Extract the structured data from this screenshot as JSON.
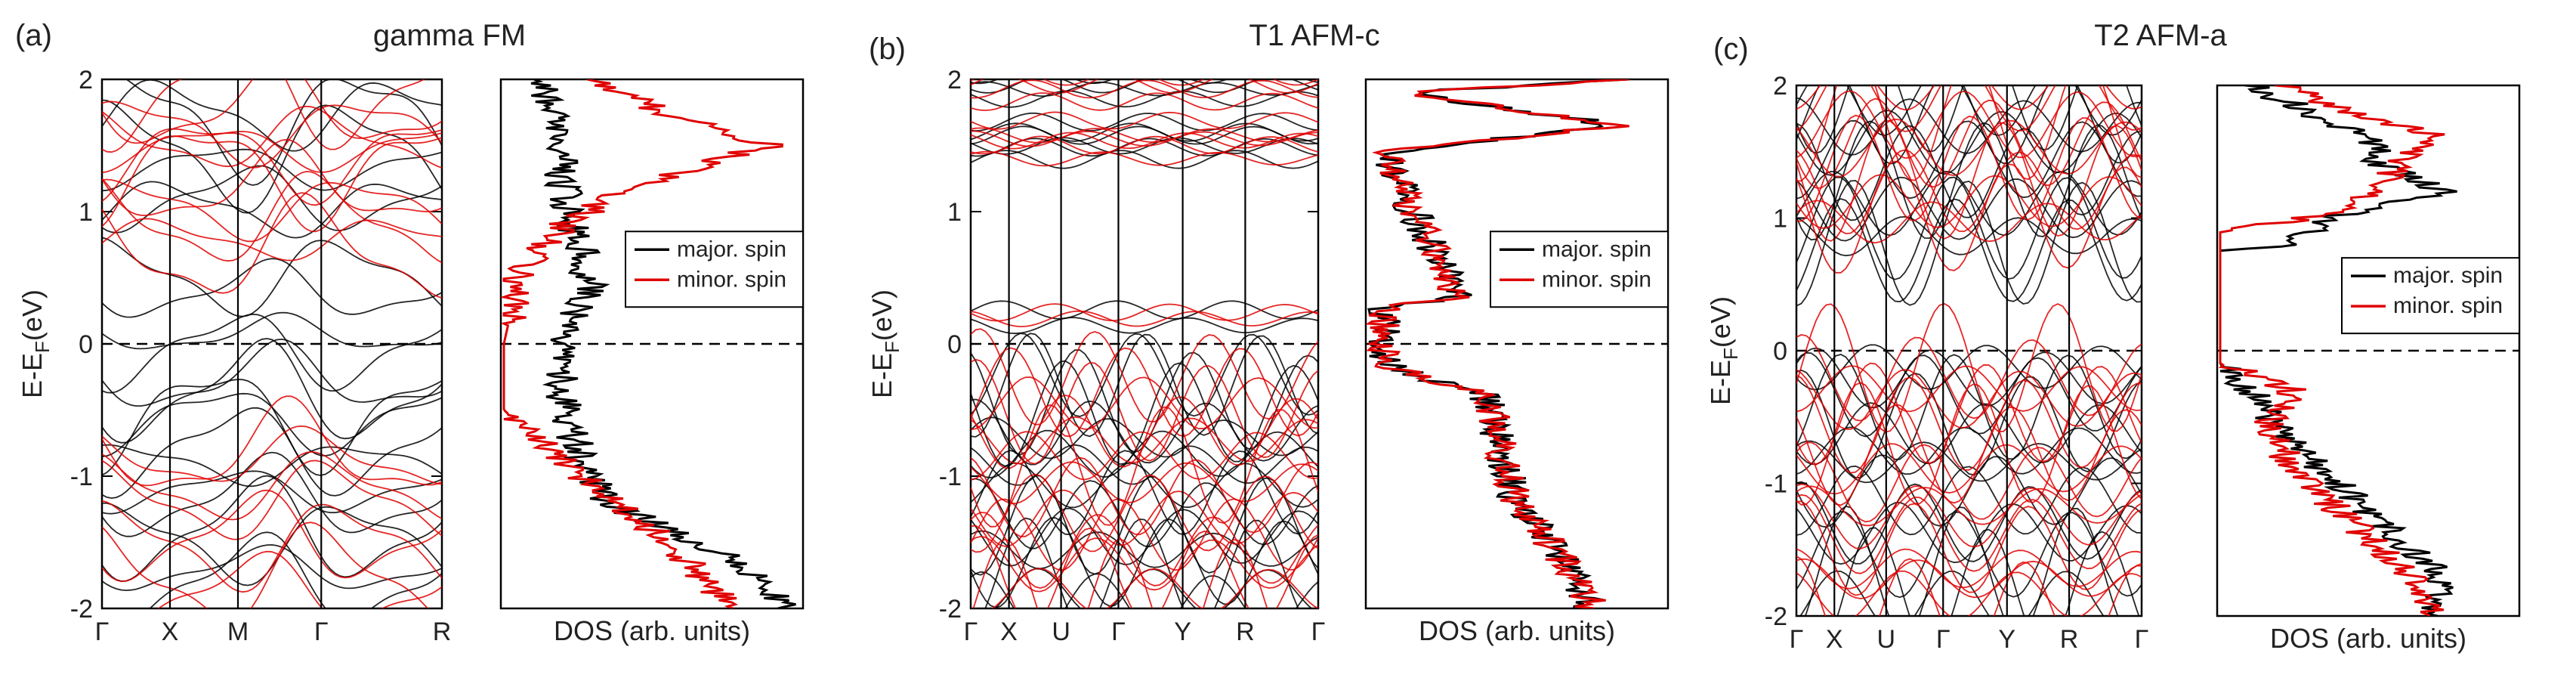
{
  "panels": [
    {
      "label": "(a)",
      "title": "gamma FM",
      "band": {
        "ylabel": "E-E",
        "ylabel_sub": "F",
        "ylabel_tail": "(eV)",
        "yticks": [
          "-2",
          "-1",
          "0",
          "1",
          "2"
        ],
        "kpoints": [
          "Γ",
          "X",
          "M",
          "Γ",
          "R"
        ],
        "kpos": [
          0,
          0.2,
          0.4,
          0.645,
          1.0
        ]
      },
      "dos": {
        "xlabel": "DOS (arb. units)",
        "legend": [
          "major. spin",
          "minor. spin"
        ]
      }
    },
    {
      "label": "(b)",
      "title": "T1 AFM-c",
      "band": {
        "ylabel": "E-E",
        "ylabel_sub": "F",
        "ylabel_tail": "(eV)",
        "yticks": [
          "-2",
          "-1",
          "0",
          "1",
          "2"
        ],
        "kpoints": [
          "Γ",
          "X",
          "U",
          "Γ",
          "Y",
          "R",
          "Γ"
        ],
        "kpos": [
          0,
          0.11,
          0.26,
          0.425,
          0.61,
          0.79,
          1.0
        ]
      },
      "dos": {
        "xlabel": "DOS (arb. units)",
        "legend": [
          "major. spin",
          "minor. spin"
        ]
      }
    },
    {
      "label": "(c)",
      "title": "T2 AFM-a",
      "band": {
        "ylabel": "E-E",
        "ylabel_sub": "F",
        "ylabel_tail": "(eV)",
        "yticks": [
          "-2",
          "-1",
          "0",
          "1",
          "2"
        ],
        "kpoints": [
          "Γ",
          "X",
          "U",
          "Γ",
          "Y",
          "R",
          "Γ"
        ],
        "kpos": [
          0,
          0.11,
          0.26,
          0.425,
          0.61,
          0.79,
          1.0
        ]
      },
      "dos": {
        "xlabel": "DOS (arb. units)",
        "legend": [
          "major. spin",
          "minor. spin"
        ]
      }
    }
  ],
  "chart_data": [
    {
      "type": "line",
      "panel": "(a)",
      "title": "gamma FM",
      "xlabel": "",
      "ylabel": "E-EF(eV)",
      "ylim": [
        -2,
        2
      ],
      "x_ticks": [
        "Γ",
        "X",
        "M",
        "Γ",
        "R"
      ],
      "series": [
        {
          "name": "major. spin",
          "color": "#000000",
          "y_values": [
            0.46,
            0.02,
            -0.3,
            -0.55,
            -0.85,
            -1.15,
            -1.45,
            -1.75,
            1.05,
            1.4,
            1.7
          ]
        },
        {
          "name": "minor. spin",
          "color": "#e00000",
          "y_values": [
            -0.85,
            -1.15,
            -1.5,
            -1.8,
            0.75,
            1.0,
            1.25,
            1.45,
            1.6,
            1.85
          ]
        }
      ]
    },
    {
      "type": "line",
      "panel": "(a)",
      "title": "",
      "xlabel": "DOS (arb. units)",
      "ylabel": "",
      "ylim": [
        -2,
        2
      ],
      "legend": "right-middle",
      "series": [
        {
          "name": "major. spin",
          "color": "#000000",
          "y": [
            2.0,
            1.6,
            1.2,
            0.8,
            0.4,
            0.0,
            -0.4,
            -0.8,
            -1.2,
            -1.6,
            -1.95
          ],
          "x": [
            0.12,
            0.18,
            0.2,
            0.25,
            0.3,
            0.18,
            0.2,
            0.25,
            0.35,
            0.75,
            0.95
          ]
        },
        {
          "name": "minor. spin",
          "color": "#e00000",
          "y": [
            2.0,
            1.75,
            1.5,
            1.2,
            0.9,
            0.5,
            0.0,
            -0.5,
            -0.9,
            -1.3,
            -1.6,
            -1.95
          ],
          "x": [
            0.3,
            0.55,
            0.9,
            0.45,
            0.2,
            0.05,
            0.0,
            0.0,
            0.2,
            0.45,
            0.6,
            0.75
          ]
        }
      ]
    },
    {
      "type": "line",
      "panel": "(b)",
      "title": "T1 AFM-c",
      "xlabel": "",
      "ylabel": "E-EF(eV)",
      "ylim": [
        -2,
        2
      ],
      "x_ticks": [
        "Γ",
        "X",
        "U",
        "Γ",
        "Y",
        "R",
        "Γ"
      ],
      "series": [
        {
          "name": "major. spin",
          "color": "#000000",
          "y_values": [
            1.98,
            1.9,
            1.62,
            1.55,
            1.45,
            0.2,
            -0.3,
            -0.5,
            -0.7,
            -0.9,
            -1.1,
            -1.3,
            -1.5,
            -1.7,
            -1.9
          ]
        },
        {
          "name": "minor. spin",
          "color": "#e00000",
          "y_values": [
            1.98,
            1.9,
            1.62,
            1.55,
            1.45,
            0.2,
            -0.3,
            -0.5,
            -0.7,
            -0.9,
            -1.1,
            -1.3,
            -1.5,
            -1.7,
            -1.9
          ]
        }
      ]
    },
    {
      "type": "line",
      "panel": "(b)",
      "title": "",
      "xlabel": "DOS (arb. units)",
      "ylabel": "",
      "ylim": [
        -2,
        2
      ],
      "legend": "right-middle",
      "series": [
        {
          "name": "major. spin",
          "color": "#000000",
          "y": [
            2.0,
            1.9,
            1.65,
            1.45,
            0.35,
            0.28,
            -0.15,
            -0.4,
            -0.8,
            -1.2,
            -1.6,
            -1.95
          ],
          "x": [
            0.9,
            0.1,
            0.85,
            0.05,
            0.3,
            0.05,
            0.05,
            0.4,
            0.45,
            0.5,
            0.65,
            0.75
          ]
        },
        {
          "name": "minor. spin",
          "color": "#e00000",
          "y": [
            2.0,
            1.9,
            1.65,
            1.45,
            0.35,
            0.28,
            -0.15,
            -0.4,
            -0.8,
            -1.2,
            -1.6,
            -1.95
          ],
          "x": [
            0.9,
            0.1,
            0.85,
            0.05,
            0.3,
            0.05,
            0.05,
            0.4,
            0.45,
            0.5,
            0.65,
            0.75
          ]
        }
      ]
    },
    {
      "type": "line",
      "panel": "(c)",
      "title": "T2 AFM-a",
      "xlabel": "",
      "ylabel": "E-EF(eV)",
      "ylim": [
        -2,
        2
      ],
      "x_ticks": [
        "Γ",
        "X",
        "U",
        "Γ",
        "Y",
        "R",
        "Γ"
      ],
      "series": [
        {
          "name": "major. spin",
          "color": "#000000",
          "y_values": [
            1.9,
            1.7,
            1.5,
            1.3,
            1.1,
            0.9,
            0.8,
            -0.15,
            -0.4,
            -0.6,
            -0.8,
            -1.1,
            -1.35,
            -1.6,
            -1.85
          ]
        },
        {
          "name": "minor. spin",
          "color": "#e00000",
          "y_values": [
            1.95,
            1.75,
            1.55,
            1.35,
            1.15,
            1.0,
            -0.15,
            -0.3,
            -0.5,
            -0.75,
            -0.95,
            -1.2,
            -1.45,
            -1.7,
            -1.9
          ]
        }
      ]
    },
    {
      "type": "line",
      "panel": "(c)",
      "title": "",
      "xlabel": "DOS (arb. units)",
      "ylabel": "",
      "ylim": [
        -2,
        2
      ],
      "legend": "right-middle",
      "series": [
        {
          "name": "major. spin",
          "color": "#000000",
          "y": [
            2.0,
            1.8,
            1.6,
            1.4,
            1.2,
            1.0,
            0.8,
            0.75,
            -0.1,
            -0.3,
            -0.6,
            -1.0,
            -1.4,
            -1.7,
            -1.95
          ],
          "x": [
            0.1,
            0.3,
            0.5,
            0.55,
            0.75,
            0.35,
            0.25,
            0.0,
            0.0,
            0.1,
            0.2,
            0.4,
            0.6,
            0.75,
            0.7
          ]
        },
        {
          "name": "minor. spin",
          "color": "#e00000",
          "y": [
            2.0,
            1.8,
            1.6,
            1.4,
            1.2,
            1.0,
            0.9,
            -0.1,
            -0.3,
            -0.6,
            -1.0,
            -1.4,
            -1.7,
            -1.95
          ],
          "x": [
            0.2,
            0.45,
            0.75,
            0.6,
            0.55,
            0.3,
            0.0,
            0.0,
            0.25,
            0.15,
            0.3,
            0.5,
            0.65,
            0.7
          ]
        }
      ]
    }
  ]
}
